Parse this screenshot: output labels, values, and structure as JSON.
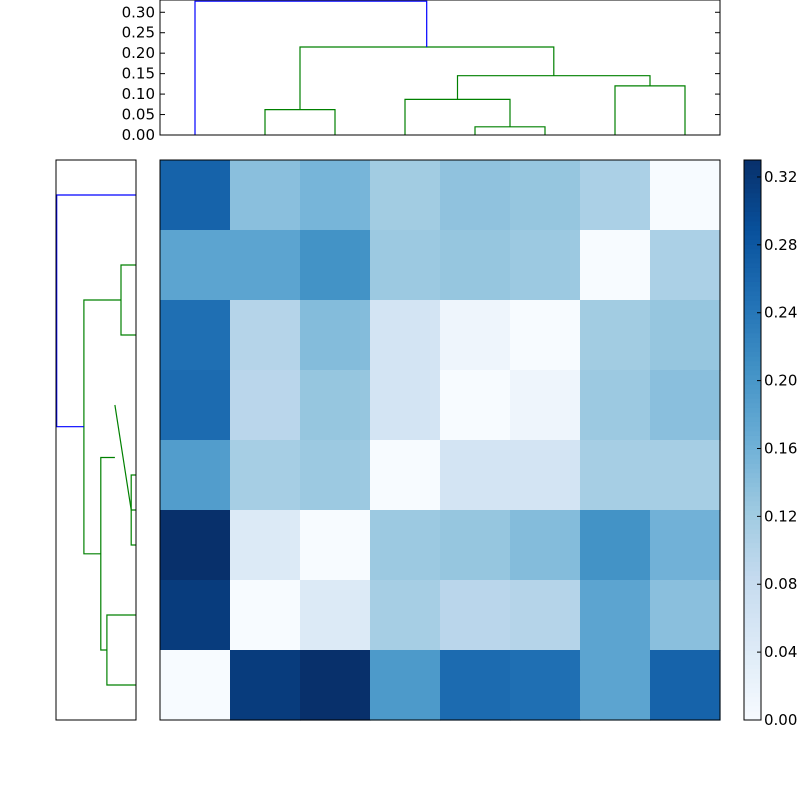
{
  "chart_data": [
    {
      "type": "dendrogram",
      "orientation": "top",
      "title": "",
      "ylim": [
        0,
        0.33
      ],
      "yticks": [
        "0.00",
        "0.05",
        "0.10",
        "0.15",
        "0.20",
        "0.25",
        "0.30"
      ],
      "leaf_positions": [
        5,
        15,
        25,
        35,
        45,
        55,
        65,
        75
      ],
      "links": [
        {
          "x": [
            45,
            45,
            55,
            55
          ],
          "y": [
            0,
            0.02,
            0.02,
            0
          ],
          "color": "#008000"
        },
        {
          "x": [
            15,
            15,
            25,
            25
          ],
          "y": [
            0,
            0.062,
            0.062,
            0
          ],
          "color": "#008000"
        },
        {
          "x": [
            35,
            35,
            50,
            50
          ],
          "y": [
            0,
            0.087,
            0.087,
            0.02
          ],
          "color": "#008000"
        },
        {
          "x": [
            65,
            65,
            75,
            75
          ],
          "y": [
            0,
            0.12,
            0.12,
            0
          ],
          "color": "#008000"
        },
        {
          "x": [
            42.5,
            42.5,
            70,
            70
          ],
          "y": [
            0.087,
            0.145,
            0.145,
            0.12
          ],
          "color": "#008000"
        },
        {
          "x": [
            20,
            20,
            56.25,
            56.25
          ],
          "y": [
            0.062,
            0.215,
            0.215,
            0.145
          ],
          "color": "#008000"
        },
        {
          "x": [
            5,
            5,
            38.1,
            38.1
          ],
          "y": [
            0,
            0.327,
            0.327,
            0.215
          ],
          "color": "#0000ff"
        }
      ]
    },
    {
      "type": "dendrogram",
      "orientation": "left",
      "xlim": [
        0.33,
        0
      ],
      "leaf_positions": [
        5,
        15,
        25,
        35,
        45,
        55,
        65,
        75
      ],
      "links": [
        {
          "x": [
            0,
            0.02,
            0.02,
            0
          ],
          "y": [
            45,
            45,
            55,
            55
          ],
          "color": "#008000"
        },
        {
          "x": [
            0,
            0.062,
            0.062,
            0
          ],
          "y": [
            15,
            15,
            25,
            25
          ],
          "color": "#008000"
        },
        {
          "x": [
            0.087,
            0.087,
            0.02,
            0
          ],
          "y": [
            35,
            35,
            50,
            50
          ],
          "color": "#008000"
        },
        {
          "x": [
            0,
            0.12,
            0.12,
            0
          ],
          "y": [
            65,
            65,
            75,
            75
          ],
          "color": "#008000"
        },
        {
          "x": [
            0.087,
            0.145,
            0.145,
            0.12
          ],
          "y": [
            42.5,
            42.5,
            70,
            70
          ],
          "color": "#008000"
        },
        {
          "x": [
            0.062,
            0.215,
            0.215,
            0.145
          ],
          "y": [
            20,
            20,
            56.25,
            56.25
          ],
          "color": "#008000"
        },
        {
          "x": [
            0,
            0.327,
            0.327,
            0.215
          ],
          "y": [
            5,
            5,
            38.1,
            38.1
          ],
          "color": "#0000ff"
        }
      ]
    },
    {
      "type": "heatmap",
      "rows": 8,
      "cols": 8,
      "values": [
        [
          0.265,
          0.14,
          0.155,
          0.12,
          0.135,
          0.13,
          0.11,
          0.0
        ],
        [
          0.18,
          0.18,
          0.205,
          0.125,
          0.13,
          0.125,
          0.0,
          0.11
        ],
        [
          0.25,
          0.1,
          0.145,
          0.06,
          0.015,
          0.0,
          0.12,
          0.13
        ],
        [
          0.255,
          0.095,
          0.13,
          0.06,
          0.0,
          0.015,
          0.125,
          0.14
        ],
        [
          0.19,
          0.115,
          0.125,
          0.0,
          0.06,
          0.06,
          0.115,
          0.115
        ],
        [
          0.33,
          0.045,
          0.0,
          0.125,
          0.13,
          0.145,
          0.205,
          0.16
        ],
        [
          0.315,
          0.0,
          0.045,
          0.115,
          0.095,
          0.1,
          0.18,
          0.14
        ],
        [
          0.0,
          0.315,
          0.33,
          0.195,
          0.255,
          0.25,
          0.18,
          0.265
        ]
      ],
      "colormap": "Blues",
      "vmin": 0,
      "vmax": 0.33
    },
    {
      "type": "colorbar",
      "vmin": 0,
      "vmax": 0.33,
      "ticks": [
        0.0,
        0.04,
        0.08,
        0.12,
        0.16,
        0.2,
        0.24,
        0.28,
        0.32
      ],
      "tick_labels": [
        "0.00",
        "0.04",
        "0.08",
        "0.12",
        "0.16",
        "0.20",
        "0.24",
        "0.28",
        "0.32"
      ]
    }
  ]
}
